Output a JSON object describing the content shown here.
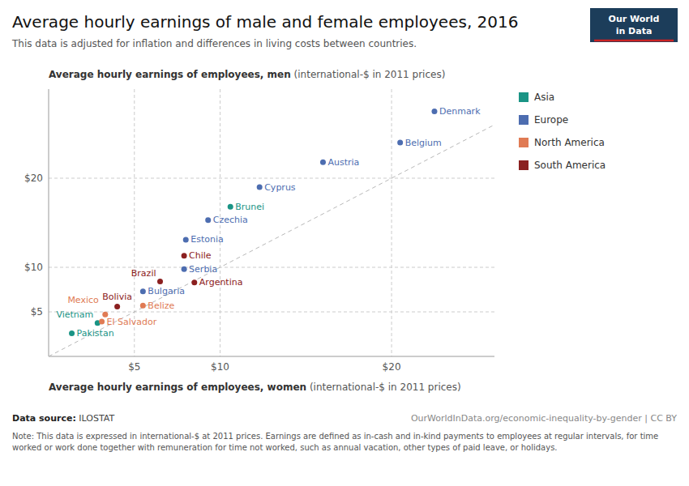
{
  "chart_data": {
    "type": "scatter",
    "title": "Average hourly earnings of male and female employees, 2016",
    "subtitle": "This data is adjusted for inflation and differences in living costs between countries.",
    "ylabel": [
      "Average hourly earnings of employees, men",
      " (international-$ in 2011 prices)"
    ],
    "xlabel": [
      "Average hourly earnings of employees, women",
      " (international-$ in 2011 prices)"
    ],
    "series": [
      {
        "name": "Asia",
        "color": "#1a9485",
        "x": [
          1.35,
          2.85,
          10.6
        ],
        "values": [
          2.6,
          3.75,
          16.8
        ],
        "labels": [
          "Pakistan",
          "Vietnam",
          "Brunei"
        ]
      },
      {
        "name": "Europe",
        "color": "#4d6db0",
        "x": [
          5.5,
          7.9,
          8.0,
          9.3,
          12.3,
          16.0,
          20.5,
          22.5
        ],
        "values": [
          7.3,
          9.8,
          13.1,
          15.3,
          19.0,
          21.8,
          24.0,
          27.5
        ],
        "labels": [
          "Bulgaria",
          "Serbia",
          "Estonia",
          "Czechia",
          "Cyprus",
          "Austria",
          "Belgium",
          "Denmark"
        ]
      },
      {
        "name": "North America",
        "color": "#e07b54",
        "x": [
          3.1,
          3.3,
          5.5
        ],
        "values": [
          3.9,
          4.7,
          5.7
        ],
        "labels": [
          "El Salvador",
          "Mexico",
          "Belize"
        ]
      },
      {
        "name": "South America",
        "color": "#8b2020",
        "x": [
          4.0,
          6.5,
          8.5,
          7.9
        ],
        "values": [
          5.6,
          8.4,
          8.3,
          11.3
        ],
        "labels": [
          "Bolivia",
          "Brazil",
          "Argentina",
          "Chile"
        ]
      }
    ],
    "xlim": [
      0,
      26
    ],
    "ylim": [
      0,
      30
    ],
    "xticks": [
      {
        "value": 5,
        "label": "$5"
      },
      {
        "value": 10,
        "label": "$10"
      },
      {
        "value": 20,
        "label": "$20"
      }
    ],
    "yticks": [
      {
        "value": 5,
        "label": "$5"
      },
      {
        "value": 10,
        "label": "$10"
      },
      {
        "value": 20,
        "label": "$20"
      }
    ],
    "grid": true,
    "legend": "right",
    "source": [
      "Data source:",
      " ILOSTAT"
    ],
    "url": "OurWorldInData.org/economic-inequality-by-gender | CC BY",
    "note": "Note: This data is expressed in international-$ at 2011 prices. Earnings are defined as in-cash and in-kind payments to employees at regular intervals, for time worked or work done together with remuneration for time not worked, such as annual vacation, other types of paid leave, or holidays.",
    "logo": [
      "Our World",
      "in Data"
    ]
  }
}
